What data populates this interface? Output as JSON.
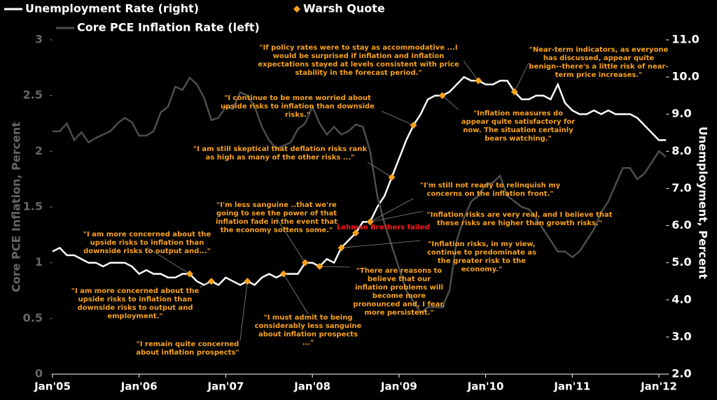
{
  "chart_data": {
    "type": "line",
    "categories": [
      "Jan'05",
      null,
      null,
      null,
      null,
      null,
      null,
      null,
      null,
      null,
      null,
      null,
      "Jan'06",
      null,
      null,
      null,
      null,
      null,
      null,
      null,
      null,
      null,
      null,
      null,
      "Jan'07",
      null,
      null,
      null,
      null,
      null,
      null,
      null,
      null,
      null,
      null,
      null,
      "Jan'08",
      null,
      null,
      null,
      null,
      null,
      null,
      null,
      null,
      null,
      null,
      null,
      "Jan'09",
      null,
      null,
      null,
      null,
      null,
      null,
      null,
      null,
      null,
      null,
      null,
      "Jan'10",
      null,
      null,
      null,
      null,
      null,
      null,
      null,
      null,
      null,
      null,
      null,
      "Jan'11",
      null,
      null,
      null,
      null,
      null,
      null,
      null,
      null,
      null,
      null,
      null,
      "Jan'12",
      null
    ],
    "series": [
      {
        "name": "Unemployment Rate (right)",
        "color": "#ffffff",
        "axis": "y2",
        "values": [
          5.3,
          5.4,
          5.2,
          5.2,
          5.1,
          5.0,
          5.0,
          4.9,
          5.0,
          5.0,
          5.0,
          4.9,
          4.7,
          4.8,
          4.7,
          4.7,
          4.6,
          4.6,
          4.7,
          4.7,
          4.5,
          4.4,
          4.5,
          4.4,
          4.6,
          4.5,
          4.4,
          4.5,
          4.4,
          4.6,
          4.7,
          4.6,
          4.7,
          4.7,
          4.7,
          5.0,
          5.0,
          4.9,
          5.1,
          5.0,
          5.4,
          5.6,
          5.8,
          6.1,
          6.1,
          6.5,
          6.8,
          7.3,
          7.8,
          8.3,
          8.7,
          9.0,
          9.4,
          9.5,
          9.5,
          9.6,
          9.8,
          10.0,
          9.9,
          9.9,
          9.8,
          9.8,
          9.9,
          9.9,
          9.6,
          9.4,
          9.4,
          9.5,
          9.5,
          9.4,
          9.8,
          9.3,
          9.1,
          9.0,
          9.0,
          9.1,
          9.0,
          9.1,
          9.0,
          9.0,
          9.0,
          8.9,
          8.7,
          8.5,
          8.3,
          8.3
        ]
      },
      {
        "name": "Warsh Quote",
        "color": "#f7a21b",
        "axis": "y2",
        "values": [
          null,
          null,
          null,
          null,
          null,
          null,
          null,
          null,
          null,
          null,
          null,
          null,
          null,
          null,
          null,
          null,
          null,
          null,
          null,
          4.7,
          null,
          null,
          4.5,
          null,
          null,
          null,
          null,
          4.5,
          null,
          null,
          null,
          null,
          4.7,
          null,
          null,
          5.0,
          null,
          4.9,
          null,
          null,
          5.4,
          null,
          5.8,
          null,
          6.1,
          null,
          null,
          7.3,
          null,
          null,
          8.7,
          null,
          null,
          null,
          9.5,
          null,
          null,
          null,
          null,
          9.9,
          null,
          null,
          null,
          null,
          9.6,
          null,
          null,
          null,
          null,
          null,
          null,
          null,
          null,
          null,
          null,
          null,
          null,
          null,
          null,
          null,
          null,
          null,
          null,
          null,
          null,
          null
        ]
      },
      {
        "name": "Core PCE Inflation Rate (left)",
        "color": "#4d4d4d",
        "axis": "y",
        "values": [
          2.18,
          2.18,
          2.25,
          2.1,
          2.17,
          2.08,
          2.12,
          2.15,
          2.18,
          2.25,
          2.3,
          2.26,
          2.14,
          2.14,
          2.18,
          2.35,
          2.4,
          2.58,
          2.55,
          2.66,
          2.6,
          2.48,
          2.28,
          2.3,
          2.4,
          2.38,
          2.53,
          2.5,
          2.4,
          2.22,
          2.1,
          2.02,
          2.05,
          2.08,
          2.2,
          2.25,
          2.4,
          2.25,
          2.15,
          2.22,
          2.15,
          2.18,
          2.24,
          2.22,
          2.0,
          1.6,
          1.35,
          1.15,
          0.95,
          0.75,
          0.65,
          0.55,
          0.6,
          0.6,
          0.6,
          0.75,
          1.2,
          1.4,
          1.55,
          1.6,
          1.7,
          1.72,
          1.78,
          1.6,
          1.55,
          1.5,
          1.48,
          1.4,
          1.3,
          1.2,
          1.1,
          1.1,
          1.05,
          1.1,
          1.2,
          1.3,
          1.45,
          1.55,
          1.7,
          1.85,
          1.85,
          1.75,
          1.8,
          1.9,
          2.0,
          1.95
        ]
      }
    ],
    "ylabel": "Core PCE Inflation, Percent",
    "y2label": "Unemployment, Percent",
    "ylim": [
      0,
      3
    ],
    "yticks": [
      0,
      0.5,
      1,
      1.5,
      2,
      2.5,
      3
    ],
    "y2lim": [
      2,
      11
    ],
    "y2ticks": [
      {
        "value": 2,
        "label": "2.0"
      },
      {
        "value": 3,
        "label": "3.0"
      },
      {
        "value": 4,
        "label": "4.0"
      },
      {
        "value": 5,
        "label": "5.0"
      },
      {
        "value": 6,
        "label": "6.0"
      },
      {
        "value": 7,
        "label": "7.0"
      },
      {
        "value": 8,
        "label": "8.0"
      },
      {
        "value": 9,
        "label": "9.0"
      },
      {
        "value": 10,
        "label": "10.0"
      },
      {
        "value": 11,
        "label": "11.0"
      }
    ],
    "legend": "top-left",
    "event_label": "Lehman Brothers failed",
    "annotations": [
      "\"If policy rates were to stay as accommodative ...I would be surprised if inflation and inflation expectations stayed at levels consistent with price stability in the forecast period.\"",
      "\"Near-term indicators, as everyone has discussed, appear quite benign--there's a little risk of near-term price increases.\"",
      "\"I continue to be more worried about upside risks to inflation than downside risks.\"",
      "\"Inflation measures do appear quite satisfactory for now. The situation certainly bears watching.\"",
      "\"I am still skeptical that deflation risks rank as high as many of the other risks ...\"",
      "\"I'm still not ready to relinquish my concerns on the inflation front.\"",
      "\"I'm less sanguine ..that we're going to see the power of that inflation fade in the event that the economy softens some.\"",
      "\"Inflation risks are very real, and I believe that these risks are higher than growth risks.\"",
      "\"I am more concerned about the upside risks to inflation than downside risks to output and...\"",
      "\"Inflation risks, in my view, continue to predominate as the greater risk to the economy.\"",
      "\"There are reasons to believe that our inflation problems will become more pronounced and, I fear, more persistent.\"",
      "\"I am more concerned about the upside risks to inflation than downside risks to output and employment.\"",
      "\"I must admit to being considerably less sanguine about inflation prospects ...\"",
      "\"I remain quite concerned about inflation prospects\""
    ]
  }
}
